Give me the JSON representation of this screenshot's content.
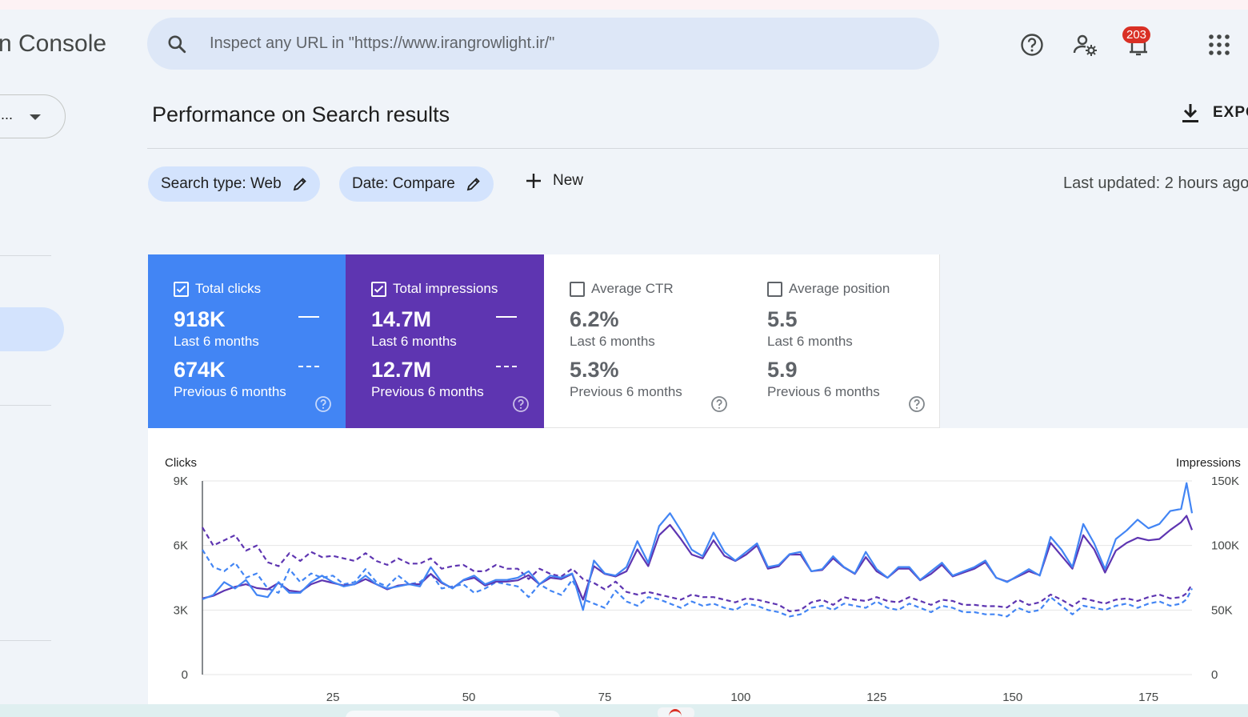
{
  "app": {
    "brand": "n Console"
  },
  "search": {
    "placeholder": "Inspect any URL in \"https://www.irangrowlight.ir/\""
  },
  "header": {
    "notification_count": "203",
    "property_ellipsis": "..."
  },
  "page": {
    "title": "Performance on Search results",
    "export_label": "EXPO",
    "last_updated": "Last updated: 2 hours ago"
  },
  "filters": {
    "search_type": "Search type: Web",
    "date": "Date: Compare",
    "new_label": "New"
  },
  "metrics": {
    "clicks": {
      "label": "Total clicks",
      "current": "918K",
      "current_label": "Last 6 months",
      "previous": "674K",
      "previous_label": "Previous 6 months",
      "checked": true
    },
    "impressions": {
      "label": "Total impressions",
      "current": "14.7M",
      "current_label": "Last 6 months",
      "previous": "12.7M",
      "previous_label": "Previous 6 months",
      "checked": true
    },
    "ctr": {
      "label": "Average CTR",
      "current": "6.2%",
      "current_label": "Last 6 months",
      "previous": "5.3%",
      "previous_label": "Previous 6 months",
      "checked": false
    },
    "position": {
      "label": "Average position",
      "current": "5.5",
      "current_label": "Last 6 months",
      "previous": "5.9",
      "previous_label": "Previous 6 months",
      "checked": false
    }
  },
  "colors": {
    "clicks": "#4285f4",
    "impressions": "#5e35b1",
    "accent_chip": "#d3e3fd"
  },
  "chart_data": {
    "type": "line",
    "ylabel_left": "Clicks",
    "ylabel_right": "Impressions",
    "left_ticks": [
      "9K",
      "6K",
      "3K",
      "0"
    ],
    "right_ticks": [
      "150K",
      "100K",
      "50K",
      "0"
    ],
    "x_ticks": [
      25,
      50,
      75,
      100,
      125,
      150,
      175
    ],
    "xlim": [
      1,
      183
    ],
    "ylim_left": [
      0,
      9000
    ],
    "ylim_right": [
      0,
      150000
    ],
    "grid": true,
    "series": [
      {
        "key": "clicks_current",
        "axis": "left",
        "color": "#4285f4",
        "dashed": false,
        "x": [
          1,
          3,
          5,
          7,
          9,
          11,
          13,
          15,
          17,
          19,
          21,
          23,
          25,
          27,
          29,
          31,
          33,
          35,
          37,
          39,
          41,
          43,
          45,
          47,
          49,
          51,
          53,
          55,
          57,
          59,
          61,
          63,
          65,
          67,
          69,
          71,
          73,
          75,
          77,
          79,
          81,
          83,
          85,
          87,
          89,
          91,
          93,
          95,
          97,
          99,
          101,
          103,
          105,
          107,
          109,
          111,
          113,
          115,
          117,
          119,
          121,
          123,
          125,
          127,
          129,
          131,
          133,
          135,
          137,
          139,
          141,
          143,
          145,
          147,
          149,
          151,
          153,
          155,
          157,
          159,
          161,
          163,
          165,
          167,
          169,
          171,
          173,
          175,
          177,
          179,
          181,
          182,
          183
        ],
        "y": [
          3500,
          3700,
          4300,
          4000,
          4400,
          3700,
          3600,
          4300,
          3800,
          3800,
          4300,
          4600,
          4300,
          4100,
          4200,
          4600,
          4200,
          4000,
          4100,
          4200,
          4100,
          5000,
          4300,
          4000,
          4400,
          4600,
          4200,
          4400,
          4400,
          4500,
          4800,
          4200,
          4600,
          4500,
          4700,
          3000,
          5300,
          4700,
          4600,
          5000,
          6200,
          5200,
          6900,
          7500,
          6700,
          5800,
          5500,
          6600,
          5700,
          5300,
          5700,
          6100,
          5000,
          5100,
          5600,
          5700,
          4800,
          4900,
          5500,
          5000,
          4700,
          5700,
          4900,
          4500,
          5000,
          5000,
          4400,
          4800,
          5200,
          4600,
          4800,
          5000,
          5300,
          4500,
          4300,
          4600,
          4900,
          4600,
          6400,
          5800,
          5000,
          7000,
          6100,
          4900,
          6300,
          6700,
          7200,
          6800,
          7000,
          7600,
          7700,
          8900,
          7500
        ]
      },
      {
        "key": "impressions_current",
        "axis": "right",
        "color": "#5e35b1",
        "dashed": false,
        "x": [
          1,
          3,
          5,
          7,
          9,
          11,
          13,
          15,
          17,
          19,
          21,
          23,
          25,
          27,
          29,
          31,
          33,
          35,
          37,
          39,
          41,
          43,
          45,
          47,
          49,
          51,
          53,
          55,
          57,
          59,
          61,
          63,
          65,
          67,
          69,
          71,
          73,
          75,
          77,
          79,
          81,
          83,
          85,
          87,
          89,
          91,
          93,
          95,
          97,
          99,
          101,
          103,
          105,
          107,
          109,
          111,
          113,
          115,
          117,
          119,
          121,
          123,
          125,
          127,
          129,
          131,
          133,
          135,
          137,
          139,
          141,
          143,
          145,
          147,
          149,
          151,
          153,
          155,
          157,
          159,
          161,
          163,
          165,
          167,
          169,
          171,
          173,
          175,
          177,
          179,
          181,
          182,
          183
        ],
        "y": [
          59000,
          61000,
          65000,
          68000,
          70000,
          67000,
          66000,
          71000,
          65000,
          64000,
          70000,
          73000,
          71000,
          69000,
          70000,
          74000,
          70000,
          66000,
          69000,
          70000,
          70000,
          78000,
          71000,
          67000,
          73000,
          75000,
          69000,
          72000,
          72000,
          73000,
          77000,
          70000,
          75000,
          74000,
          78000,
          58000,
          84000,
          78000,
          76000,
          80000,
          97000,
          84000,
          108000,
          116000,
          105000,
          93000,
          90000,
          104000,
          92000,
          88000,
          93000,
          100000,
          82000,
          84000,
          93000,
          93000,
          80000,
          81000,
          90000,
          83000,
          78000,
          91000,
          80000,
          75000,
          82000,
          82000,
          73000,
          78000,
          85000,
          76000,
          79000,
          82000,
          87000,
          75000,
          72000,
          76000,
          80000,
          77000,
          102000,
          92000,
          82000,
          108000,
          97000,
          79000,
          96000,
          102000,
          106000,
          104000,
          105000,
          112000,
          118000,
          123000,
          112000
        ]
      },
      {
        "key": "clicks_previous",
        "axis": "left",
        "color": "#4285f4",
        "dashed": true,
        "x": [
          1,
          3,
          5,
          7,
          9,
          11,
          13,
          15,
          17,
          19,
          21,
          23,
          25,
          27,
          29,
          31,
          33,
          35,
          37,
          39,
          41,
          43,
          45,
          47,
          49,
          51,
          53,
          55,
          57,
          59,
          61,
          63,
          65,
          67,
          69,
          71,
          73,
          75,
          77,
          79,
          81,
          83,
          85,
          87,
          89,
          91,
          93,
          95,
          97,
          99,
          101,
          103,
          105,
          107,
          109,
          111,
          113,
          115,
          117,
          119,
          121,
          123,
          125,
          127,
          129,
          131,
          133,
          135,
          137,
          139,
          141,
          143,
          145,
          147,
          149,
          151,
          153,
          155,
          157,
          159,
          161,
          163,
          165,
          167,
          169,
          171,
          173,
          175,
          177,
          179,
          181,
          182,
          183
        ],
        "y": [
          5800,
          5000,
          4800,
          5200,
          4500,
          4700,
          4000,
          3800,
          4900,
          4300,
          4700,
          4500,
          4600,
          4200,
          4300,
          4900,
          4300,
          4100,
          4600,
          4200,
          4300,
          4700,
          4000,
          4100,
          4200,
          3800,
          4000,
          4300,
          4200,
          4100,
          3600,
          4200,
          3900,
          3700,
          4400,
          3500,
          3300,
          3100,
          3900,
          3400,
          3200,
          3600,
          3500,
          3300,
          3100,
          3400,
          3200,
          3300,
          3100,
          3000,
          3300,
          3200,
          3000,
          2900,
          2700,
          2800,
          3100,
          3200,
          3000,
          3300,
          3200,
          3100,
          3400,
          3100,
          3000,
          3300,
          3100,
          2900,
          3200,
          3100,
          2900,
          2900,
          2800,
          2800,
          2700,
          3100,
          2900,
          3000,
          3600,
          3200,
          2800,
          3200,
          3100,
          3000,
          3200,
          3300,
          3100,
          3300,
          3400,
          3200,
          3300,
          3500,
          4000
        ]
      },
      {
        "key": "impressions_previous",
        "axis": "right",
        "color": "#5e35b1",
        "dashed": true,
        "x": [
          1,
          3,
          5,
          7,
          9,
          11,
          13,
          15,
          17,
          19,
          21,
          23,
          25,
          27,
          29,
          31,
          33,
          35,
          37,
          39,
          41,
          43,
          45,
          47,
          49,
          51,
          53,
          55,
          57,
          59,
          61,
          63,
          65,
          67,
          69,
          71,
          73,
          75,
          77,
          79,
          81,
          83,
          85,
          87,
          89,
          91,
          93,
          95,
          97,
          99,
          101,
          103,
          105,
          107,
          109,
          111,
          113,
          115,
          117,
          119,
          121,
          123,
          125,
          127,
          129,
          131,
          133,
          135,
          137,
          139,
          141,
          143,
          145,
          147,
          149,
          151,
          153,
          155,
          157,
          159,
          161,
          163,
          165,
          167,
          169,
          171,
          173,
          175,
          177,
          179,
          181,
          182,
          183
        ],
        "y": [
          114000,
          100000,
          104000,
          108000,
          96000,
          100000,
          87000,
          84000,
          94000,
          88000,
          95000,
          91000,
          92000,
          90000,
          88000,
          94000,
          88000,
          85000,
          90000,
          86000,
          86000,
          90000,
          82000,
          84000,
          85000,
          80000,
          80000,
          85000,
          82000,
          82000,
          74000,
          82000,
          78000,
          76000,
          82000,
          74000,
          71000,
          66000,
          72000,
          64000,
          62000,
          64000,
          62000,
          60000,
          58000,
          62000,
          60000,
          60000,
          58000,
          56000,
          59000,
          58000,
          56000,
          54000,
          49000,
          50000,
          56000,
          58000,
          54000,
          60000,
          58000,
          57000,
          60000,
          57000,
          56000,
          60000,
          57000,
          54000,
          58000,
          57000,
          54000,
          54000,
          53000,
          53000,
          52000,
          58000,
          54000,
          56000,
          62000,
          58000,
          53000,
          59000,
          57000,
          55000,
          58000,
          59000,
          57000,
          60000,
          62000,
          59000,
          60000,
          63000,
          70000
        ]
      }
    ]
  }
}
